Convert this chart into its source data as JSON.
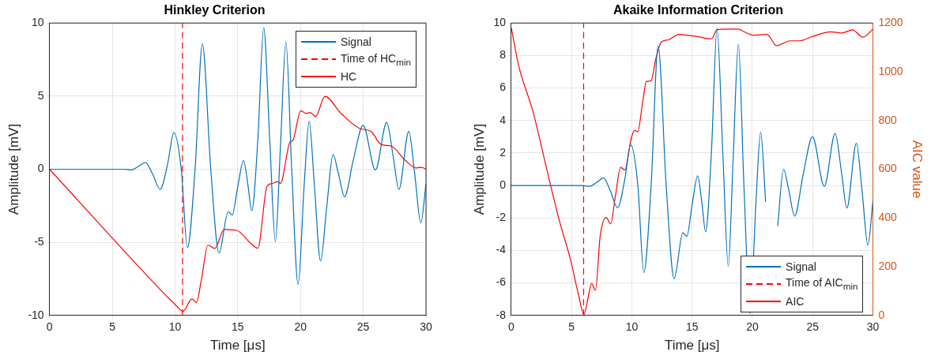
{
  "chart_data": [
    {
      "type": "line",
      "title": "Hinkley Criterion",
      "xlabel": "Time [μs]",
      "ylabel": "Amplitude [mV]",
      "xlim": [
        0,
        30
      ],
      "xticks": [
        0,
        5,
        10,
        15,
        20,
        25,
        30
      ],
      "ylim": [
        -10,
        10
      ],
      "yticks": [
        -10,
        -5,
        0,
        5,
        10
      ],
      "grid": true,
      "legend": "top right",
      "marker": "none",
      "line_style": "solid",
      "series": [
        {
          "name": "Signal",
          "color": "#0072bd",
          "x": [
            0,
            5.9,
            6.5,
            7.1,
            7.65,
            8.2,
            8.82,
            9.4,
            9.91,
            10.5,
            10.99,
            11.6,
            12.18,
            12.85,
            13.51,
            14.24,
            14.56,
            15.0,
            15.46,
            15.8,
            16.12,
            16.6,
            17.07,
            17.55,
            18.0,
            18.4,
            18.84,
            19.3,
            19.81,
            20.3,
            20.69,
            21.1,
            21.6,
            22.1,
            22.59,
            23.0,
            23.51,
            24.2,
            24.99,
            25.97,
            26.87,
            27.4,
            27.84,
            28.63,
            29.1,
            29.59,
            30
          ],
          "values": [
            0,
            0,
            -0.05,
            0.2,
            0.46,
            -0.3,
            -1.37,
            0.3,
            2.5,
            0,
            -5.36,
            0,
            8.58,
            0,
            -5.73,
            -2.9,
            -3.13,
            -1.2,
            0.59,
            -1.0,
            -2.84,
            2,
            9.68,
            2,
            -4.96,
            1.5,
            8.69,
            0,
            -7.87,
            -1,
            3.29,
            -1,
            -6.28,
            -2.5,
            1.0,
            -0.2,
            -1.88,
            0.6,
            3.0,
            -0.05,
            3.2,
            0.8,
            -1.39,
            2.6,
            -0.3,
            -3.68,
            -0.97
          ]
        },
        {
          "name": "Time of HC$_{min}$",
          "color": "#ff0000",
          "line_style": "dashed",
          "x": [
            10.6,
            10.6
          ],
          "values": [
            -10,
            10
          ]
        },
        {
          "name": "HC",
          "color": "#ff0000",
          "x": [
            0,
            8.89,
            9.96,
            10.64,
            11.35,
            11.71,
            12.1,
            12.63,
            13.17,
            13.92,
            14.88,
            16.06,
            16.6,
            17.34,
            17.77,
            18.2,
            18.4,
            19.17,
            19.38,
            20.02,
            20.45,
            20.77,
            21.2,
            21.95,
            23.23,
            24.73,
            25.59,
            26.45,
            27.2,
            28.37,
            29.23,
            29.66,
            30
          ],
          "values": [
            0,
            -8.29,
            -9.2,
            -9.72,
            -8.87,
            -9.11,
            -7.56,
            -5.18,
            -5.42,
            -4.12,
            -4.17,
            -5.09,
            -5.4,
            -1.15,
            -0.97,
            -0.84,
            -0.97,
            1.87,
            1.96,
            4.0,
            3.82,
            3.88,
            3.6,
            4.98,
            3.82,
            2.78,
            2.6,
            1.68,
            1.59,
            0.59,
            0.09,
            0.13,
            0
          ]
        }
      ]
    },
    {
      "type": "line",
      "title": "Akaike Information Criterion",
      "xlabel": "Time [μs]",
      "ylabel": "Amplitude [mV]",
      "y2label": "AIC value",
      "xlim": [
        0,
        30
      ],
      "xticks": [
        0,
        5,
        10,
        15,
        20,
        25,
        30
      ],
      "ylim": [
        -8,
        10
      ],
      "yticks": [
        -8,
        -6,
        -4,
        -2,
        0,
        2,
        4,
        6,
        8,
        10
      ],
      "y2lim": [
        0,
        1200
      ],
      "y2ticks": [
        0,
        200,
        400,
        600,
        800,
        1000,
        1200
      ],
      "grid": true,
      "legend": "bottom right",
      "marker": "none",
      "line_style": "solid",
      "series": [
        {
          "name": "Signal",
          "color": "#0072bd",
          "x": [
            0,
            5.9,
            6.5,
            7.1,
            7.65,
            8.2,
            8.82,
            9.4,
            9.91,
            10.5,
            10.99,
            11.6,
            12.18,
            12.85,
            13.51,
            14.24,
            14.56,
            15.0,
            15.46,
            15.8,
            16.12,
            16.6,
            17.07,
            17.55,
            18.0,
            18.4,
            18.84,
            19.3,
            19.81,
            20.3,
            20.69,
            21.1,
            21.6,
            22.1,
            22.59,
            23.0,
            23.51,
            24.2,
            24.99,
            25.97,
            26.87,
            27.4,
            27.84,
            28.63,
            29.1,
            29.59,
            30
          ],
          "values": [
            0,
            0,
            -0.05,
            0.2,
            0.46,
            -0.3,
            -1.37,
            0.3,
            2.5,
            0,
            -5.36,
            0,
            8.58,
            0,
            -5.73,
            -2.9,
            -3.13,
            -1.2,
            0.59,
            -1.0,
            -2.84,
            2,
            9.68,
            2,
            -4.96,
            1.5,
            8.69,
            0,
            -7.87,
            -1,
            3.29,
            -1,
            null,
            -2.5,
            1.0,
            -0.2,
            -1.88,
            0.6,
            3.0,
            -0.05,
            3.2,
            0.8,
            -1.39,
            2.6,
            -0.3,
            -3.68,
            -0.97
          ]
        },
        {
          "name": "Time of AIC$_{min}$",
          "color": "#ff0000",
          "line_style": "dashed",
          "x": [
            6,
            6
          ],
          "values": [
            -8,
            10
          ]
        },
        {
          "name": "AIC",
          "color": "#ff0000",
          "axis": "y2",
          "x": [
            0,
            0.63,
            1.76,
            2.43,
            3.22,
            4.01,
            4.91,
            5.58,
            6.03,
            6.37,
            6.66,
            6.98,
            7.38,
            7.88,
            8.24,
            8.62,
            9.07,
            9.41,
            9.97,
            10.26,
            10.49,
            10.87,
            11.21,
            11.59,
            12.0,
            12.45,
            13.01,
            13.91,
            15.26,
            16.61,
            17.06,
            17.96,
            18.86,
            19.31,
            20.1,
            21.22,
            22.01,
            23.14,
            23.93,
            24.94,
            26.51,
            27.41,
            28.31,
            29.17,
            30
          ],
          "values": [
            1180,
            1021,
            843,
            709,
            541,
            385,
            229,
            84,
            3,
            73,
            132,
            103,
            329,
            402,
            376,
            485,
            608,
            597,
            731,
            759,
            754,
            865,
            960,
            963,
            1055,
            1122,
            1131,
            1153,
            1146,
            1135,
            1172,
            1175,
            1175,
            1164,
            1150,
            1153,
            1107,
            1127,
            1127,
            1144,
            1164,
            1159,
            1172,
            1142,
            1175
          ]
        }
      ]
    }
  ]
}
